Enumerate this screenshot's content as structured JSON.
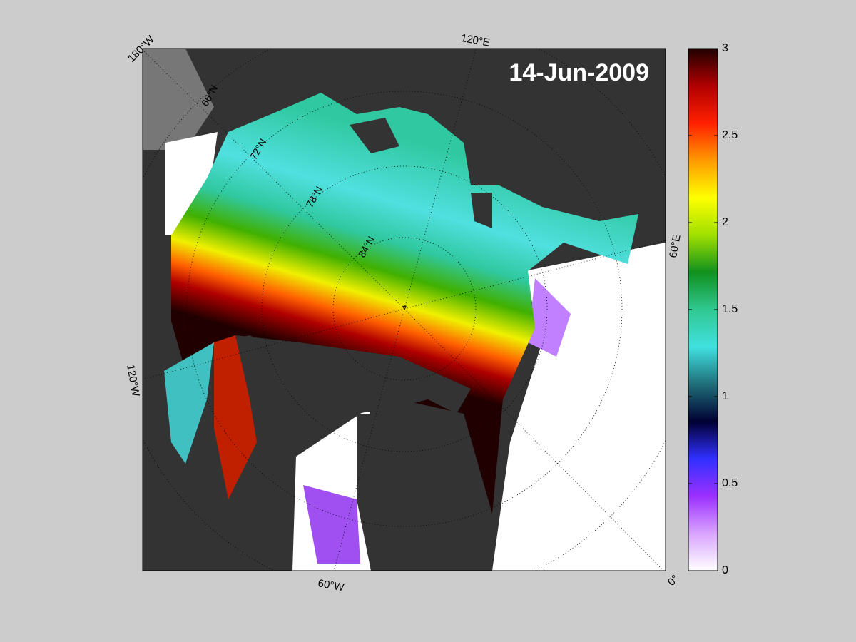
{
  "map": {
    "date_label": "14-Jun-2009",
    "longitude_labels": [
      "180°W",
      "120°E",
      "60°E",
      "0°",
      "60°W",
      "120°W"
    ],
    "latitude_labels": [
      "66°N",
      "72°N",
      "78°N",
      "84°N"
    ]
  },
  "colorbar": {
    "range": [
      0,
      3
    ],
    "ticks": [
      0,
      0.5,
      1,
      1.5,
      2,
      2.5,
      3
    ],
    "colors": [
      "#ffffff",
      "#d9a3ff",
      "#9b30ff",
      "#3030ff",
      "#000033",
      "#1f6f7a",
      "#40e0e0",
      "#30c890",
      "#10901e",
      "#a0e000",
      "#ffff00",
      "#ff9900",
      "#ff2000",
      "#b00000",
      "#200000"
    ]
  }
}
